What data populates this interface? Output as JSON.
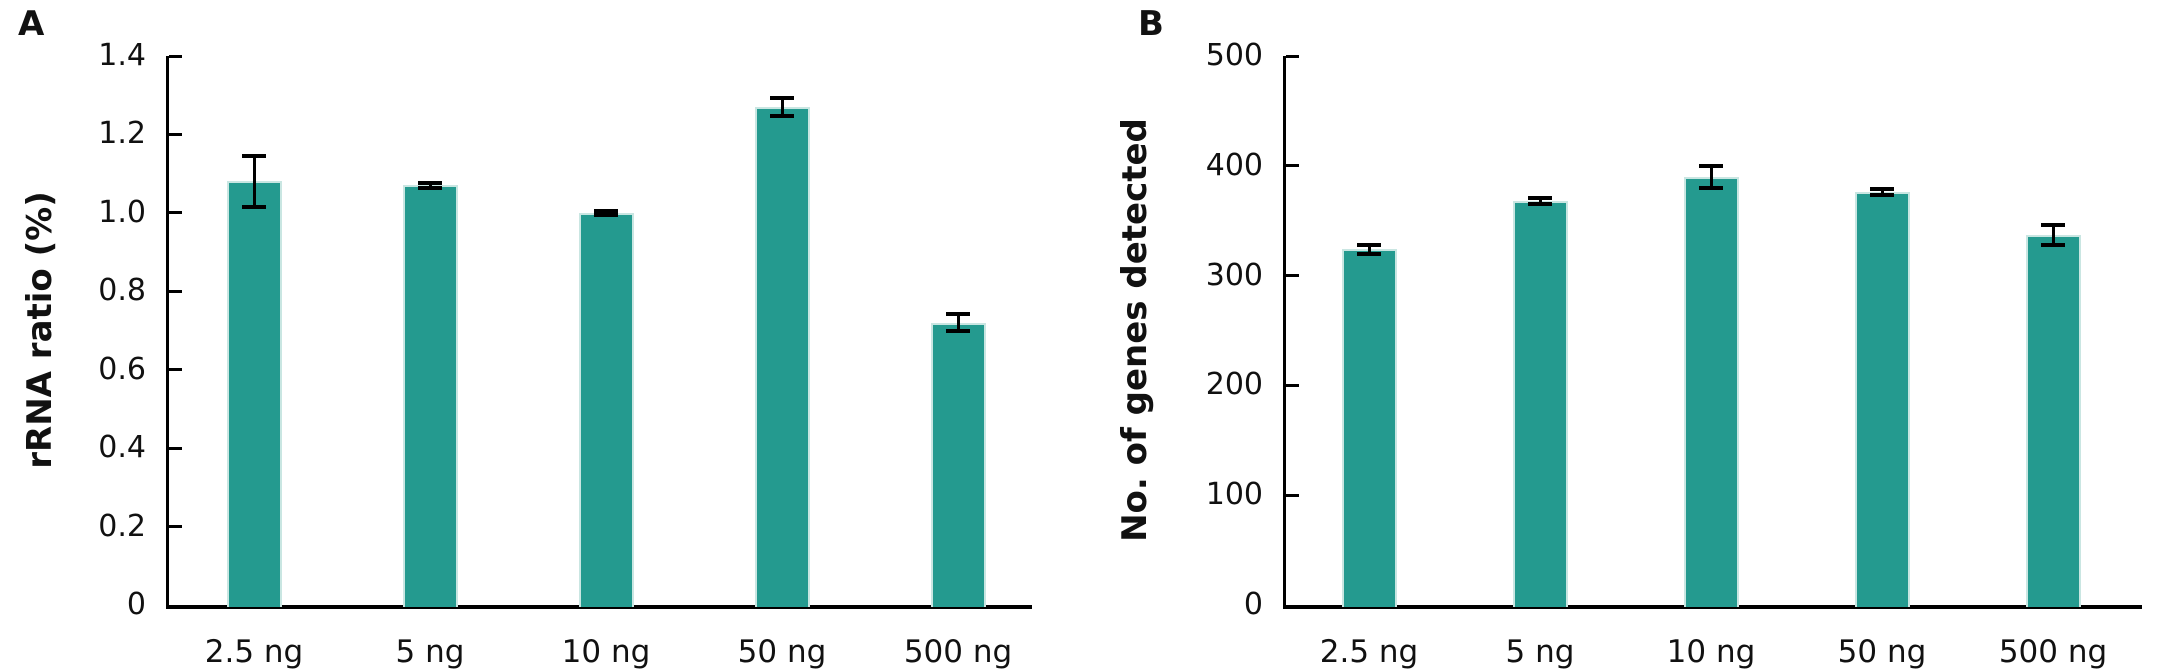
{
  "figure": {
    "background": "#ffffff",
    "text_color": "#111111",
    "axis_color": "#000000"
  },
  "chart_data": [
    {
      "type": "bar",
      "panel_label": "A",
      "title": "",
      "xlabel": "",
      "ylabel": "rRNA ratio (%)",
      "categories": [
        "2.5 ng",
        "5 ng",
        "10 ng",
        "50 ng",
        "500 ng"
      ],
      "values": [
        1.08,
        1.07,
        1.0,
        1.27,
        0.72
      ],
      "errors": [
        0.065,
        0.006,
        0.005,
        0.024,
        0.022
      ],
      "ylim": [
        0,
        1.4
      ],
      "ytick_step": 0.2,
      "yticks": [
        "1.4",
        "1.2",
        "1.0",
        "0.8",
        "0.6",
        "0.4",
        "0.2",
        "0"
      ],
      "grid": false,
      "legend": null,
      "bar_color": "#249a8f",
      "bar_edge_color": "#c9e6e2",
      "error_color": "#000000"
    },
    {
      "type": "bar",
      "panel_label": "B",
      "title": "",
      "xlabel": "",
      "ylabel": "No. of genes detected",
      "categories": [
        "2.5 ng",
        "5 ng",
        "10 ng",
        "50 ng",
        "500 ng"
      ],
      "values": [
        324,
        368,
        390,
        376,
        337
      ],
      "errors": [
        4,
        3,
        10,
        3,
        9
      ],
      "ylim": [
        0,
        500
      ],
      "ytick_step": 100,
      "yticks": [
        "500",
        "400",
        "300",
        "200",
        "100",
        "0"
      ],
      "grid": false,
      "legend": null,
      "bar_color": "#249a8f",
      "bar_edge_color": "#c9e6e2",
      "error_color": "#000000"
    }
  ]
}
